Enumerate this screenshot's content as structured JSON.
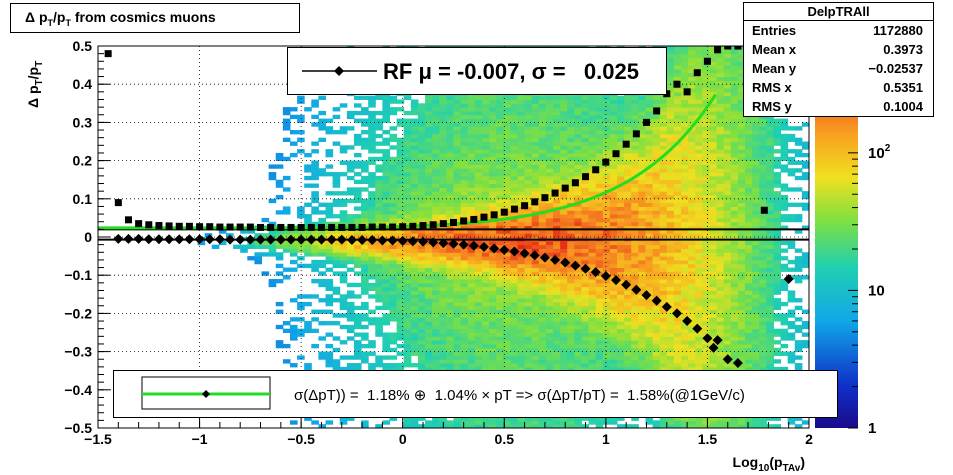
{
  "title": "Δ p_T/p_T from cosmics muons",
  "stats": {
    "name": "DelpTRAll",
    "rows": [
      {
        "label": "Entries",
        "value": "1172880"
      },
      {
        "label": "Mean x",
        "value": "0.3973"
      },
      {
        "label": "Mean y",
        "value": "−0.02537"
      },
      {
        "label": "RMS x",
        "value": "0.5351"
      },
      {
        "label": "RMS y",
        "value": "0.1004"
      }
    ]
  },
  "legend_top": "RF μ = -0.007, σ =   0.025",
  "legend_bottom": "σ(ΔpT)) =  1.18% ⊕  1.04% × pT => σ(ΔpT/pT) =  1.58%(@1GeV/c)",
  "colors": {
    "fit_curve": "#22dd22",
    "markers": "#000000"
  },
  "chart_data": {
    "type": "heatmap",
    "xlabel": "Log10(pTAv)",
    "ylabel": "Δ pT/pT",
    "xlim": [
      -1.5,
      2
    ],
    "ylim": [
      -0.5,
      0.5
    ],
    "x_ticks": [
      "−1.5",
      "−1",
      "−0.5",
      "0",
      "0.5",
      "1",
      "1.5",
      "2"
    ],
    "y_ticks": [
      "−0.5",
      "−0.4",
      "−0.3",
      "−0.2",
      "−0.1",
      "0",
      "0.1",
      "0.2",
      "0.3",
      "0.4",
      "0.5"
    ],
    "colorbar_ticks": [
      "1",
      "10",
      "10^2"
    ],
    "colorbar_scale": "log",
    "grid": true,
    "series": [
      {
        "type": "markers",
        "x": [
          -1.45,
          -1.4,
          -1.35,
          -1.3,
          -1.25,
          -1.2,
          -1.15,
          -1.1,
          -1.05,
          -1.0,
          -0.95,
          -0.9,
          -0.85,
          -0.8,
          -0.75,
          -0.7,
          -0.65,
          -0.6,
          -0.55,
          -0.5,
          -0.45,
          -0.4,
          -0.35,
          -0.3,
          -0.25,
          -0.2,
          -0.15,
          -0.1,
          -0.05,
          0.0,
          0.05,
          0.1,
          0.15,
          0.2,
          0.25,
          0.3,
          0.35,
          0.4,
          0.45,
          0.5,
          0.55,
          0.6,
          0.65,
          0.7,
          0.75,
          0.8,
          0.85,
          0.9,
          0.95,
          1.0,
          1.05,
          1.1,
          1.15,
          1.2,
          1.25,
          1.3,
          1.35,
          1.4,
          1.45,
          1.5,
          1.55,
          1.6,
          1.65,
          1.78,
          1.9
        ],
        "y": [
          0.48,
          0.09,
          0.045,
          0.035,
          0.032,
          0.03,
          0.029,
          0.028,
          0.028,
          0.027,
          0.027,
          0.026,
          0.026,
          0.026,
          0.026,
          0.025,
          0.025,
          0.025,
          0.025,
          0.025,
          0.025,
          0.025,
          0.025,
          0.025,
          0.025,
          0.025,
          0.026,
          0.026,
          0.026,
          0.027,
          0.028,
          0.03,
          0.032,
          0.035,
          0.038,
          0.042,
          0.046,
          0.052,
          0.058,
          0.065,
          0.073,
          0.082,
          0.092,
          0.103,
          0.115,
          0.128,
          0.142,
          0.158,
          0.176,
          0.196,
          0.218,
          0.243,
          0.27,
          0.3,
          0.33,
          0.375,
          0.4,
          0.38,
          0.43,
          0.46,
          0.49,
          0.5,
          0.5,
          0.07,
          0.5
        ]
      },
      {
        "type": "markers",
        "x": [
          -1.4,
          -1.35,
          -1.3,
          -1.25,
          -1.2,
          -1.15,
          -1.1,
          -1.05,
          -1.0,
          -0.95,
          -0.9,
          -0.85,
          -0.8,
          -0.75,
          -0.7,
          -0.65,
          -0.6,
          -0.55,
          -0.5,
          -0.45,
          -0.4,
          -0.35,
          -0.3,
          -0.25,
          -0.2,
          -0.15,
          -0.1,
          -0.05,
          0.0,
          0.05,
          0.1,
          0.15,
          0.2,
          0.25,
          0.3,
          0.35,
          0.4,
          0.45,
          0.5,
          0.55,
          0.6,
          0.65,
          0.7,
          0.75,
          0.8,
          0.85,
          0.9,
          0.95,
          1.0,
          1.05,
          1.1,
          1.15,
          1.2,
          1.25,
          1.3,
          1.35,
          1.4,
          1.45,
          1.5,
          1.53,
          1.55,
          1.6,
          1.65,
          1.9
        ],
        "y": [
          -0.005,
          -0.005,
          -0.005,
          -0.006,
          -0.006,
          -0.006,
          -0.006,
          -0.006,
          -0.006,
          -0.006,
          -0.006,
          -0.007,
          -0.007,
          -0.007,
          -0.007,
          -0.007,
          -0.007,
          -0.007,
          -0.007,
          -0.007,
          -0.007,
          -0.007,
          -0.007,
          -0.008,
          -0.008,
          -0.008,
          -0.009,
          -0.009,
          -0.01,
          -0.011,
          -0.012,
          -0.014,
          -0.016,
          -0.018,
          -0.02,
          -0.023,
          -0.026,
          -0.03,
          -0.034,
          -0.038,
          -0.043,
          -0.048,
          -0.054,
          -0.06,
          -0.067,
          -0.075,
          -0.083,
          -0.092,
          -0.102,
          -0.113,
          -0.125,
          -0.138,
          -0.152,
          -0.167,
          -0.183,
          -0.2,
          -0.22,
          -0.24,
          -0.265,
          -0.29,
          -0.27,
          -0.32,
          -0.33,
          -0.11
        ]
      },
      {
        "type": "fit_curve",
        "x_min": -1.5,
        "x_max": 1.55,
        "formula": "sigma(x)=sqrt(0.0118^2+(0.0104*10^x)^2)+offset"
      },
      {
        "type": "horizontal_lines",
        "y": [
          0.02,
          -0.007
        ]
      }
    ]
  }
}
